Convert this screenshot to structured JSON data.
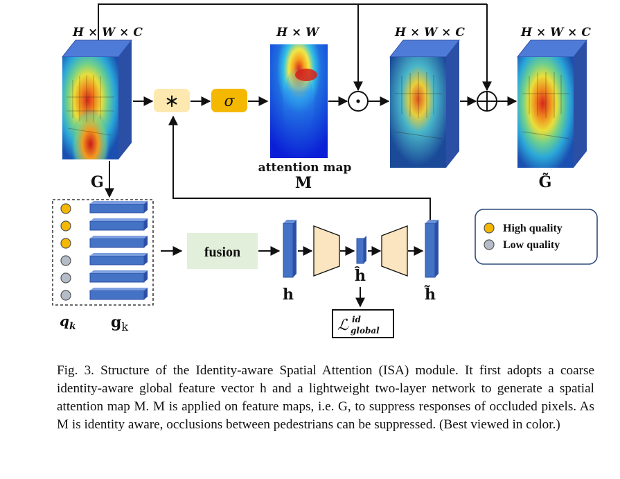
{
  "diagram": {
    "dims_hwc": "H × W × C",
    "dims_hw": "H × W",
    "op_conv": "∗",
    "op_sigma": "σ",
    "op_dot": "⊙",
    "op_plus": "⊕",
    "attention_map_label": "attention map",
    "M": "M",
    "G": "G",
    "G_tilde": "G̃",
    "fusion": "fusion",
    "h": "h",
    "h_hat": "ĥ",
    "h_tilde": "h̃",
    "loss_base": "ℒ",
    "loss_sup": "id",
    "loss_sub": "global",
    "q_base": "q",
    "q_sub": "k",
    "g_base": "g",
    "g_sub": "k",
    "quality_flags": [
      "high",
      "high",
      "high",
      "low",
      "low",
      "low"
    ]
  },
  "legend": {
    "high": "High quality",
    "low": "Low quality"
  },
  "colors": {
    "cube_front": "#3a64c8",
    "cube_top": "#4f7bd8",
    "cube_side": "#2c4fa6",
    "bar": "#4472c4",
    "conv_box": "#fde9b0",
    "sigma_box": "#f5b800",
    "fusion_box": "#e2efda",
    "trapezoid": "#fbe5c0",
    "high_quality": "#f5b800",
    "low_quality": "#b4bcc8"
  },
  "caption": "Fig. 3.   Structure of the Identity-aware Spatial Attention (ISA) module. It first adopts a coarse identity-aware global feature vector h and a lightweight two-layer network to generate a spatial attention map M. M is applied on feature maps, i.e. G, to suppress responses of occluded pixels. As M is identity aware, occlusions between pedestrians can be suppressed. (Best viewed in color.)"
}
